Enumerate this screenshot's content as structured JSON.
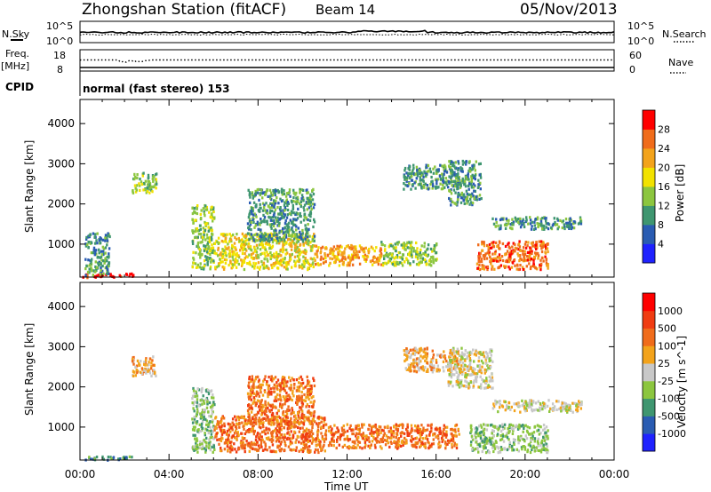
{
  "header": {
    "title": "Zhongshan Station (fitACF)",
    "beam": "Beam 14",
    "date": "05/Nov/2013"
  },
  "top_panels": {
    "nsky_label": "N.Sky",
    "nsky_ticks": [
      "10^5",
      "10^0"
    ],
    "nsearch_label": "N.Search",
    "nsearch_ticks": [
      "10^5",
      "10^0"
    ],
    "freq_label": "Freq.",
    "freq_unit": "[MHz]",
    "freq_ticks": [
      "18",
      "8"
    ],
    "nave_label": "Nave",
    "nave_ticks": [
      "60",
      "0"
    ],
    "cpid_label": "CPID",
    "cpid_value": "normal (fast stereo) 153"
  },
  "chart_data": [
    {
      "type": "heatmap",
      "title": "",
      "xlabel": "Time UT",
      "ylabel": "Slant Range [km]",
      "x_ticks": [
        "00:00",
        "04:00",
        "08:00",
        "12:00",
        "16:00",
        "20:00",
        "00:00"
      ],
      "x_range_hours": [
        0,
        24
      ],
      "y_ticks": [
        "1000",
        "2000",
        "3000",
        "4000"
      ],
      "ylim_km": [
        180,
        4600
      ],
      "colorbar": {
        "label": "Power [dB]",
        "ticks": [
          "4",
          "8",
          "12",
          "16",
          "20",
          "24",
          "28"
        ],
        "colors": [
          "#1f22ff",
          "#2a5cb2",
          "#3f9670",
          "#8cc63f",
          "#f2e200",
          "#f3a31b",
          "#f06c1b",
          "#ff0000"
        ]
      },
      "regions": [
        {
          "t0": 0.1,
          "t1": 2.5,
          "r0": 200,
          "r1": 300,
          "level": 7
        },
        {
          "t0": 0.2,
          "t1": 1.3,
          "r0": 250,
          "r1": 1300,
          "level": 2
        },
        {
          "t0": 2.3,
          "t1": 3.4,
          "r0": 2300,
          "r1": 2800,
          "level": 3
        },
        {
          "t0": 5.0,
          "t1": 6.0,
          "r0": 400,
          "r1": 2000,
          "level": 3
        },
        {
          "t0": 6.0,
          "t1": 10.5,
          "r0": 400,
          "r1": 1300,
          "level": 4
        },
        {
          "t0": 7.5,
          "t1": 10.5,
          "r0": 1100,
          "r1": 2400,
          "level": 2
        },
        {
          "t0": 10.5,
          "t1": 13.5,
          "r0": 500,
          "r1": 1000,
          "level": 5
        },
        {
          "t0": 13.5,
          "t1": 16.0,
          "r0": 500,
          "r1": 1100,
          "level": 3
        },
        {
          "t0": 14.5,
          "t1": 17.0,
          "r0": 2400,
          "r1": 3000,
          "level": 2
        },
        {
          "t0": 16.5,
          "t1": 18.0,
          "r0": 2000,
          "r1": 3100,
          "level": 2
        },
        {
          "t0": 17.8,
          "t1": 21.0,
          "r0": 400,
          "r1": 1100,
          "level": 6
        },
        {
          "t0": 18.5,
          "t1": 22.5,
          "r0": 1400,
          "r1": 1700,
          "level": 2
        }
      ]
    },
    {
      "type": "heatmap",
      "title": "",
      "xlabel": "Time UT",
      "ylabel": "Slant Range [km]",
      "x_ticks": [
        "00:00",
        "04:00",
        "08:00",
        "12:00",
        "16:00",
        "20:00",
        "00:00"
      ],
      "x_range_hours": [
        0,
        24
      ],
      "y_ticks": [
        "1000",
        "2000",
        "3000",
        "4000"
      ],
      "ylim_km": [
        180,
        4600
      ],
      "colorbar": {
        "label": "Velocity [m s^-1]",
        "ticks": [
          "1000",
          "500",
          "100",
          "25",
          "-25",
          "-100",
          "-500",
          "-1000"
        ],
        "colors": [
          "#1f22ff",
          "#2a5cb2",
          "#3f9670",
          "#8cc63f",
          "#c8c8c8",
          "#f3a31b",
          "#f06c1b",
          "#f03c12",
          "#ff0000"
        ]
      },
      "regions": [
        {
          "t0": 0.1,
          "t1": 2.5,
          "r0": 200,
          "r1": 300,
          "level": 2
        },
        {
          "t0": 2.3,
          "t1": 3.4,
          "r0": 2300,
          "r1": 2800,
          "level": 5
        },
        {
          "t0": 5.0,
          "t1": 6.0,
          "r0": 400,
          "r1": 2000,
          "level": 3
        },
        {
          "t0": 6.0,
          "t1": 11.0,
          "r0": 400,
          "r1": 1300,
          "level": 6
        },
        {
          "t0": 7.5,
          "t1": 10.5,
          "r0": 1100,
          "r1": 2300,
          "level": 6
        },
        {
          "t0": 11.0,
          "t1": 17.0,
          "r0": 500,
          "r1": 1100,
          "level": 6
        },
        {
          "t0": 14.5,
          "t1": 17.0,
          "r0": 2400,
          "r1": 3000,
          "level": 5
        },
        {
          "t0": 16.5,
          "t1": 18.5,
          "r0": 2000,
          "r1": 3000,
          "level": 4
        },
        {
          "t0": 17.5,
          "t1": 21.0,
          "r0": 400,
          "r1": 1100,
          "level": 3
        },
        {
          "t0": 18.5,
          "t1": 22.5,
          "r0": 1400,
          "r1": 1700,
          "level": 4
        }
      ]
    }
  ]
}
